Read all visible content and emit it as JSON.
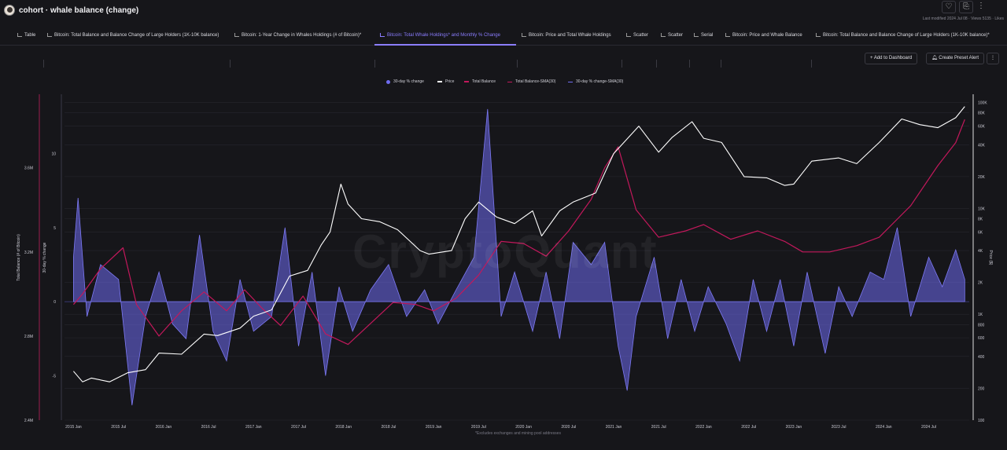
{
  "header": {
    "title": "cohort · whale balance (change)",
    "meta": "Last modified 2024 Jul 08 · Views 5135 · Likes",
    "icons": [
      "heart-icon",
      "bookmark-icon",
      "more-icon"
    ]
  },
  "tabs": [
    {
      "label": "Table"
    },
    {
      "label": "Bitcoin: Total Balance and Balance Change of Large Holders (1K-10K balance)"
    },
    {
      "label": "Bitcoin: 1-Year Change in Whales Holdings (# of Bitcoin)*"
    },
    {
      "label": "Bitcoin: Total Whale Holdings* and Monthly % Change"
    },
    {
      "label": "Bitcoin: Price and Total Whale Holdings"
    },
    {
      "label": "Scatter"
    },
    {
      "label": "Scatter"
    },
    {
      "label": "Serial"
    },
    {
      "label": "Bitcoin: Price and Whale Balance"
    },
    {
      "label": "Bitcoin: Total Balance and Balance Change of Large Holders (1K-10K balance)*"
    }
  ],
  "actions": {
    "add_dashboard": "Add to Dashboard",
    "create_alert": "Create Preset Alert",
    "more": "⋮"
  },
  "chart_data": {
    "type": "line",
    "watermark": "CryptoQuant",
    "footnote": "*Excludes exchanges and mining pool addresses",
    "legend": [
      {
        "name": "30-day % change",
        "color": "#6f6cf0"
      },
      {
        "name": "Price",
        "color": "#ffffff"
      },
      {
        "name": "Total Balance",
        "color": "#c2185b"
      },
      {
        "name": "Total Balance-SMA(30)",
        "color": "#c2185b"
      },
      {
        "name": "30-day % change-SMA(30)",
        "color": "#6f6cf0"
      }
    ],
    "x_ticks": [
      "2015 Jan",
      "2015 Jul",
      "2016 Jan",
      "2016 Jul",
      "2017 Jan",
      "2017 Jul",
      "2018 Jan",
      "2018 Jul",
      "2019 Jan",
      "2019 Jul",
      "2020 Jan",
      "2020 Jul",
      "2021 Jan",
      "2021 Jul",
      "2022 Jan",
      "2022 Jul",
      "2023 Jan",
      "2023 Jul",
      "2024 Jan",
      "2024 Jul"
    ],
    "x_range": [
      2014.9,
      2024.95
    ],
    "y_left_balance": {
      "label": "Total Balance (# of Bitcoin)",
      "ticks": [
        "2.4M",
        "2.8M",
        "3.2M",
        "3.6M"
      ],
      "values": [
        2400000,
        2800000,
        3200000,
        3600000
      ],
      "range": [
        2400000,
        3950000
      ]
    },
    "y_left_pct": {
      "label": "30-day % change",
      "ticks": [
        "-5",
        "0",
        "5",
        "10"
      ],
      "values": [
        -5,
        0,
        5,
        10
      ],
      "range": [
        -8,
        14
      ]
    },
    "y_right_price": {
      "label": "Price ($)",
      "scale": "log",
      "ticks": [
        "100",
        "200",
        "400",
        "600",
        "800",
        "1K",
        "2K",
        "4K",
        "6K",
        "8K",
        "10K",
        "20K",
        "40K",
        "60K",
        "80K",
        "100K"
      ],
      "values": [
        100,
        200,
        400,
        600,
        800,
        1000,
        2000,
        4000,
        6000,
        8000,
        10000,
        20000,
        40000,
        60000,
        80000,
        100000
      ],
      "range": [
        100,
        120000
      ]
    },
    "series": [
      {
        "name": "Price",
        "points": [
          [
            2015.0,
            290
          ],
          [
            2015.1,
            230
          ],
          [
            2015.2,
            250
          ],
          [
            2015.4,
            230
          ],
          [
            2015.6,
            280
          ],
          [
            2015.8,
            300
          ],
          [
            2015.95,
            430
          ],
          [
            2016.2,
            420
          ],
          [
            2016.45,
            650
          ],
          [
            2016.6,
            630
          ],
          [
            2016.85,
            740
          ],
          [
            2017.0,
            960
          ],
          [
            2017.2,
            1100
          ],
          [
            2017.4,
            2300
          ],
          [
            2017.6,
            2600
          ],
          [
            2017.75,
            4500
          ],
          [
            2017.85,
            6000
          ],
          [
            2017.97,
            17000
          ],
          [
            2018.05,
            11000
          ],
          [
            2018.2,
            8000
          ],
          [
            2018.4,
            7500
          ],
          [
            2018.6,
            6300
          ],
          [
            2018.85,
            4000
          ],
          [
            2018.95,
            3700
          ],
          [
            2019.2,
            4000
          ],
          [
            2019.35,
            8000
          ],
          [
            2019.5,
            11500
          ],
          [
            2019.7,
            8300
          ],
          [
            2019.9,
            7200
          ],
          [
            2020.1,
            9500
          ],
          [
            2020.2,
            5500
          ],
          [
            2020.4,
            9500
          ],
          [
            2020.55,
            11500
          ],
          [
            2020.8,
            14000
          ],
          [
            2021.0,
            33000
          ],
          [
            2021.28,
            60000
          ],
          [
            2021.5,
            34000
          ],
          [
            2021.65,
            47000
          ],
          [
            2021.87,
            66000
          ],
          [
            2022.0,
            46000
          ],
          [
            2022.2,
            42000
          ],
          [
            2022.45,
            20000
          ],
          [
            2022.7,
            19500
          ],
          [
            2022.9,
            16500
          ],
          [
            2023.0,
            17000
          ],
          [
            2023.2,
            28000
          ],
          [
            2023.5,
            30000
          ],
          [
            2023.7,
            26500
          ],
          [
            2023.95,
            42000
          ],
          [
            2024.2,
            70000
          ],
          [
            2024.4,
            62000
          ],
          [
            2024.6,
            58000
          ],
          [
            2024.8,
            72000
          ],
          [
            2024.9,
            92000
          ]
        ]
      },
      {
        "name": "Total Balance",
        "points": [
          [
            2015.0,
            2950000
          ],
          [
            2015.1,
            3000000
          ],
          [
            2015.3,
            3120000
          ],
          [
            2015.55,
            3220000
          ],
          [
            2015.7,
            2950000
          ],
          [
            2015.95,
            2800000
          ],
          [
            2016.2,
            2920000
          ],
          [
            2016.45,
            3010000
          ],
          [
            2016.7,
            2920000
          ],
          [
            2016.9,
            3020000
          ],
          [
            2017.1,
            2930000
          ],
          [
            2017.3,
            2850000
          ],
          [
            2017.55,
            2990000
          ],
          [
            2017.8,
            2810000
          ],
          [
            2018.05,
            2760000
          ],
          [
            2018.3,
            2860000
          ],
          [
            2018.55,
            2960000
          ],
          [
            2018.8,
            2950000
          ],
          [
            2019.0,
            2920000
          ],
          [
            2019.25,
            2980000
          ],
          [
            2019.5,
            3090000
          ],
          [
            2019.75,
            3250000
          ],
          [
            2020.0,
            3240000
          ],
          [
            2020.25,
            3180000
          ],
          [
            2020.5,
            3300000
          ],
          [
            2020.75,
            3450000
          ],
          [
            2020.9,
            3600000
          ],
          [
            2021.05,
            3700000
          ],
          [
            2021.25,
            3400000
          ],
          [
            2021.5,
            3270000
          ],
          [
            2021.8,
            3300000
          ],
          [
            2022.0,
            3330000
          ],
          [
            2022.3,
            3260000
          ],
          [
            2022.6,
            3300000
          ],
          [
            2022.9,
            3250000
          ],
          [
            2023.1,
            3200000
          ],
          [
            2023.4,
            3200000
          ],
          [
            2023.7,
            3230000
          ],
          [
            2023.95,
            3270000
          ],
          [
            2024.3,
            3420000
          ],
          [
            2024.6,
            3610000
          ],
          [
            2024.8,
            3720000
          ],
          [
            2024.9,
            3830000
          ]
        ]
      },
      {
        "name": "30-day % change",
        "points": [
          [
            2015.0,
            3
          ],
          [
            2015.05,
            7
          ],
          [
            2015.15,
            -1
          ],
          [
            2015.3,
            2.5
          ],
          [
            2015.5,
            1.5
          ],
          [
            2015.65,
            -7
          ],
          [
            2015.8,
            -1
          ],
          [
            2015.95,
            2
          ],
          [
            2016.1,
            -1.5
          ],
          [
            2016.25,
            -2.5
          ],
          [
            2016.4,
            4.5
          ],
          [
            2016.55,
            -2
          ],
          [
            2016.7,
            -4
          ],
          [
            2016.85,
            1.5
          ],
          [
            2017.0,
            -2
          ],
          [
            2017.2,
            -1
          ],
          [
            2017.35,
            5
          ],
          [
            2017.5,
            -3
          ],
          [
            2017.65,
            2
          ],
          [
            2017.8,
            -5
          ],
          [
            2017.95,
            1
          ],
          [
            2018.1,
            -2
          ],
          [
            2018.3,
            0.8
          ],
          [
            2018.5,
            2.5
          ],
          [
            2018.7,
            -1
          ],
          [
            2018.9,
            0.8
          ],
          [
            2019.05,
            -1.5
          ],
          [
            2019.25,
            0.8
          ],
          [
            2019.45,
            3
          ],
          [
            2019.6,
            13
          ],
          [
            2019.75,
            -1
          ],
          [
            2019.9,
            2
          ],
          [
            2020.1,
            -2
          ],
          [
            2020.25,
            2
          ],
          [
            2020.4,
            -2.5
          ],
          [
            2020.55,
            4
          ],
          [
            2020.75,
            2.5
          ],
          [
            2020.9,
            4
          ],
          [
            2021.05,
            -3
          ],
          [
            2021.15,
            -6
          ],
          [
            2021.25,
            -1
          ],
          [
            2021.45,
            3
          ],
          [
            2021.6,
            -2.5
          ],
          [
            2021.75,
            1.5
          ],
          [
            2021.9,
            -2
          ],
          [
            2022.05,
            1
          ],
          [
            2022.25,
            -1.5
          ],
          [
            2022.4,
            -4
          ],
          [
            2022.55,
            1.5
          ],
          [
            2022.7,
            -2
          ],
          [
            2022.85,
            1.5
          ],
          [
            2023.0,
            -3
          ],
          [
            2023.15,
            2
          ],
          [
            2023.35,
            -3.5
          ],
          [
            2023.5,
            1
          ],
          [
            2023.65,
            -1
          ],
          [
            2023.85,
            2
          ],
          [
            2024.0,
            1.5
          ],
          [
            2024.15,
            5
          ],
          [
            2024.3,
            -1
          ],
          [
            2024.5,
            3
          ],
          [
            2024.65,
            1
          ],
          [
            2024.8,
            3.5
          ],
          [
            2024.9,
            1.5
          ]
        ]
      }
    ]
  }
}
